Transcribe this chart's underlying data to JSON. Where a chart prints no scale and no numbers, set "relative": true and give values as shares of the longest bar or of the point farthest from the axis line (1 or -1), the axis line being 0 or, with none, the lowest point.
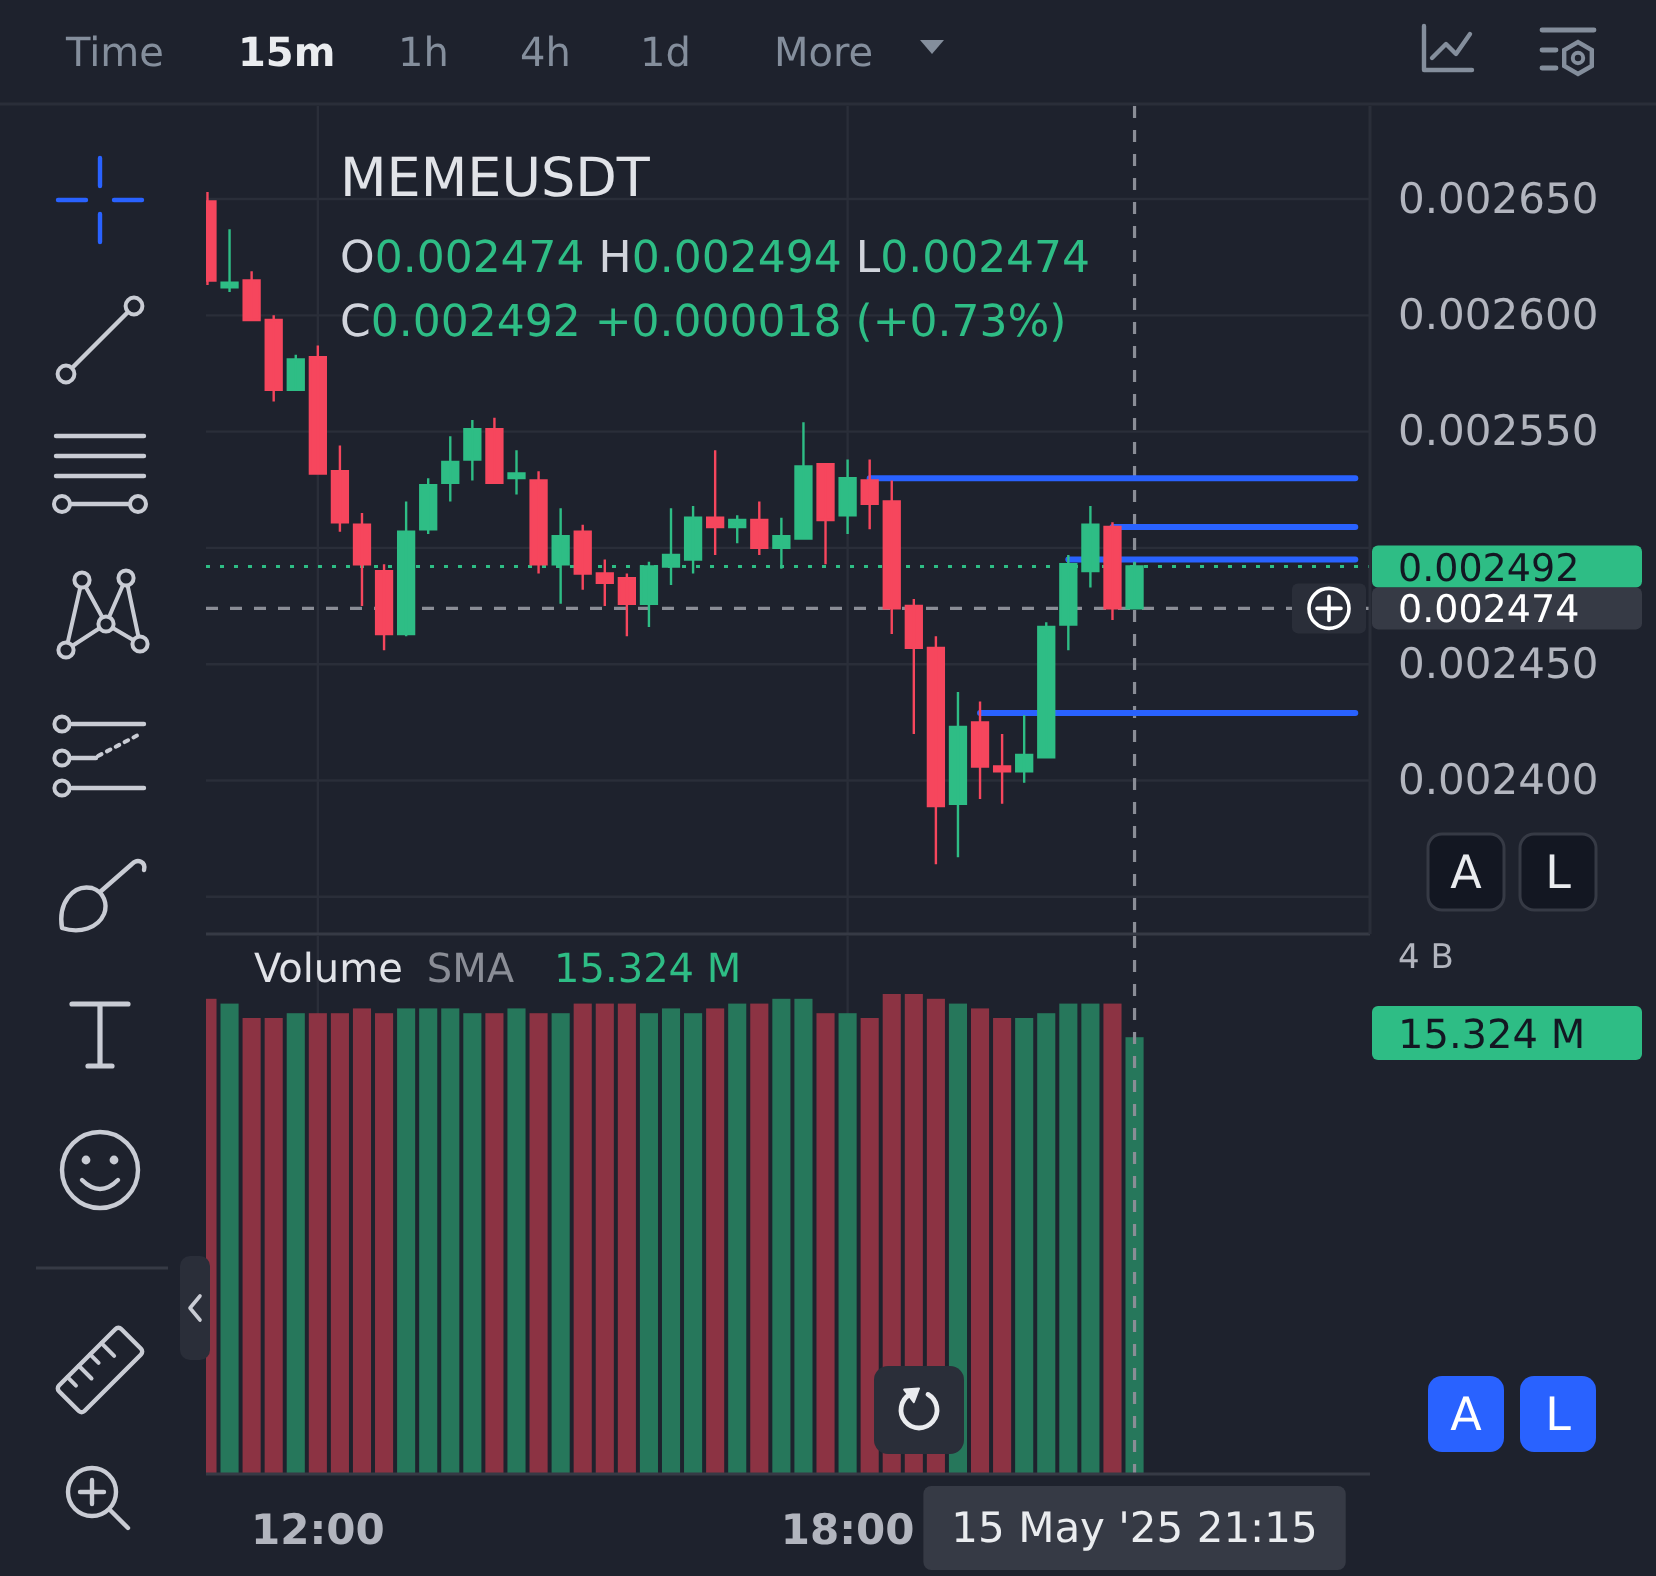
{
  "chart_data": [
    {
      "type": "other",
      "annotations": [
        "Time",
        "15m",
        "1h",
        "4h",
        "1d",
        "More"
      ]
    },
    {
      "type": "candlestick",
      "title": "MEMEUSDT",
      "x": [
        "2025-05-15T10:45",
        "2025-05-15T11:00",
        "2025-05-15T11:15",
        "2025-05-15T11:30",
        "2025-05-15T11:45",
        "2025-05-15T12:00",
        "2025-05-15T12:15",
        "2025-05-15T12:30",
        "2025-05-15T12:45",
        "2025-05-15T13:00",
        "2025-05-15T13:15",
        "2025-05-15T13:30",
        "2025-05-15T13:45",
        "2025-05-15T14:00",
        "2025-05-15T14:15",
        "2025-05-15T14:30",
        "2025-05-15T14:45",
        "2025-05-15T15:00",
        "2025-05-15T15:15",
        "2025-05-15T15:30",
        "2025-05-15T15:45",
        "2025-05-15T16:00",
        "2025-05-15T16:15",
        "2025-05-15T16:30",
        "2025-05-15T16:45",
        "2025-05-15T17:00",
        "2025-05-15T17:15",
        "2025-05-15T17:30",
        "2025-05-15T17:45",
        "2025-05-15T18:00",
        "2025-05-15T18:15",
        "2025-05-15T18:30",
        "2025-05-15T18:45",
        "2025-05-15T19:00",
        "2025-05-15T19:15",
        "2025-05-15T19:30",
        "2025-05-15T19:45",
        "2025-05-15T20:00",
        "2025-05-15T20:15",
        "2025-05-15T20:30",
        "2025-05-15T20:45",
        "2025-05-15T21:00",
        "2025-05-15T21:15"
      ],
      "ohlc": [
        [
          0.002649,
          0.002653,
          0.002613,
          0.002615
        ],
        [
          0.002612,
          0.002637,
          0.00261,
          0.002614
        ],
        [
          0.002615,
          0.002619,
          0.002598,
          0.002598
        ],
        [
          0.002598,
          0.0026,
          0.002563,
          0.002568
        ],
        [
          0.002568,
          0.002583,
          0.002568,
          0.002581
        ],
        [
          0.002582,
          0.002587,
          0.002532,
          0.002532
        ],
        [
          0.002533,
          0.002544,
          0.002507,
          0.002511
        ],
        [
          0.00251,
          0.002515,
          0.002475,
          0.002493
        ],
        [
          0.00249,
          0.002493,
          0.002456,
          0.002463
        ],
        [
          0.002463,
          0.00252,
          0.002462,
          0.002507
        ],
        [
          0.002508,
          0.00253,
          0.002506,
          0.002527
        ],
        [
          0.002528,
          0.002548,
          0.00252,
          0.002537
        ],
        [
          0.002538,
          0.002555,
          0.002529,
          0.002551
        ],
        [
          0.002551,
          0.002556,
          0.002528,
          0.002528
        ],
        [
          0.00253,
          0.002542,
          0.002523,
          0.002532
        ],
        [
          0.002529,
          0.002533,
          0.002489,
          0.002493
        ],
        [
          0.002493,
          0.002517,
          0.002476,
          0.002505
        ],
        [
          0.002507,
          0.00251,
          0.002482,
          0.002489
        ],
        [
          0.002489,
          0.002495,
          0.002475,
          0.002485
        ],
        [
          0.002487,
          0.002489,
          0.002462,
          0.002476
        ],
        [
          0.002476,
          0.002494,
          0.002466,
          0.002492
        ],
        [
          0.002492,
          0.002517,
          0.002484,
          0.002497
        ],
        [
          0.002495,
          0.002518,
          0.002489,
          0.002513
        ],
        [
          0.002513,
          0.002542,
          0.002497,
          0.002509
        ],
        [
          0.002509,
          0.002514,
          0.002502,
          0.002512
        ],
        [
          0.002512,
          0.00252,
          0.002497,
          0.0025
        ],
        [
          0.0025,
          0.002513,
          0.002491,
          0.002505
        ],
        [
          0.002504,
          0.002554,
          0.002504,
          0.002535
        ],
        [
          0.002536,
          0.002536,
          0.002493,
          0.002512
        ],
        [
          0.002514,
          0.002538,
          0.002506,
          0.00253
        ],
        [
          0.002529,
          0.002538,
          0.002508,
          0.002519
        ],
        [
          0.00252,
          0.002529,
          0.002463,
          0.002474
        ],
        [
          0.002475,
          0.002478,
          0.00242,
          0.002457
        ],
        [
          0.002457,
          0.002462,
          0.002364,
          0.002389
        ],
        [
          0.00239,
          0.002438,
          0.002367,
          0.002423
        ],
        [
          0.002425,
          0.002434,
          0.002392,
          0.002406
        ],
        [
          0.002406,
          0.00242,
          0.00239,
          0.002404
        ],
        [
          0.002404,
          0.002428,
          0.002399,
          0.002411
        ],
        [
          0.00241,
          0.002468,
          0.00241,
          0.002466
        ],
        [
          0.002467,
          0.002497,
          0.002456,
          0.002493
        ],
        [
          0.00249,
          0.002518,
          0.002483,
          0.00251
        ],
        [
          0.002509,
          0.002511,
          0.002469,
          0.002474
        ],
        [
          0.002474,
          0.002494,
          0.002474,
          0.002492
        ]
      ],
      "colors": [
        "#f6465d",
        "#2ebd85",
        "#f6465d",
        "#f6465d",
        "#2ebd85",
        "#f6465d",
        "#f6465d",
        "#f6465d",
        "#f6465d",
        "#2ebd85",
        "#2ebd85",
        "#2ebd85",
        "#2ebd85",
        "#f6465d",
        "#2ebd85",
        "#f6465d",
        "#2ebd85",
        "#f6465d",
        "#f6465d",
        "#f6465d",
        "#2ebd85",
        "#2ebd85",
        "#2ebd85",
        "#f6465d",
        "#2ebd85",
        "#f6465d",
        "#2ebd85",
        "#2ebd85",
        "#f6465d",
        "#2ebd85",
        "#f6465d",
        "#f6465d",
        "#f6465d",
        "#f6465d",
        "#2ebd85",
        "#f6465d",
        "#f6465d",
        "#2ebd85",
        "#2ebd85",
        "#2ebd85",
        "#2ebd85",
        "#f6465d",
        "#2ebd85"
      ],
      "series": [
        {
          "type": "line",
          "color": "#2962ff",
          "x": [
            "2025-05-15T18:15",
            "2025-05-15T23:45"
          ],
          "values": [
            0.00253,
            0.00253
          ]
        },
        {
          "type": "line",
          "color": "#2962ff",
          "x": [
            "2025-05-15T21:00",
            "2025-05-15T23:45"
          ],
          "values": [
            0.002509,
            0.002509
          ]
        },
        {
          "type": "line",
          "color": "#2962ff",
          "x": [
            "2025-05-15T20:30",
            "2025-05-15T23:45"
          ],
          "values": [
            0.002495,
            0.002495
          ]
        },
        {
          "type": "line",
          "color": "#2962ff",
          "x": [
            "2025-05-15T19:30",
            "2025-05-15T23:45"
          ],
          "values": [
            0.002429,
            0.002429
          ]
        }
      ],
      "xlim": [
        "2025-05-15T10:44",
        "2025-05-15T23:55"
      ],
      "xticks": [
        {
          "value": "2025-05-15T12:00",
          "label": null
        },
        {
          "value": "2025-05-15T18:00",
          "label": null
        }
      ],
      "ylim": [
        0.002334,
        0.00269
      ],
      "yticks": [
        {
          "value": 0.00235,
          "label": null
        },
        {
          "value": 0.0024,
          "label": "0.002400"
        },
        {
          "value": 0.00245,
          "label": "0.002450"
        },
        {
          "value": 0.0025,
          "label": null
        },
        {
          "value": 0.00255,
          "label": "0.002550"
        },
        {
          "value": 0.0026,
          "label": "0.002600"
        },
        {
          "value": 0.00265,
          "label": "0.002650"
        }
      ],
      "grid": true,
      "tick_labels": "y",
      "ref_lines": [
        {
          "axis": "y",
          "value": 0.002492,
          "label": "0.002492",
          "color": "#2ebd85",
          "line_style": "dotted"
        },
        {
          "axis": "y",
          "value": 0.002474,
          "label": "0.002474",
          "color": "#8a8d96",
          "line_style": "dashed"
        },
        {
          "axis": "x",
          "value": "2025-05-15T21:15",
          "color": "#8a8d96",
          "line_style": "dashed"
        }
      ],
      "annotations": [
        "O0.002474 H0.002494 L0.002474",
        "C0.002492 +0.000018 (+0.73%)",
        "A",
        "L"
      ]
    },
    {
      "type": "bar",
      "title": "Volume",
      "x": [
        "2025-05-15T10:45",
        "2025-05-15T11:00",
        "2025-05-15T11:15",
        "2025-05-15T11:30",
        "2025-05-15T11:45",
        "2025-05-15T12:00",
        "2025-05-15T12:15",
        "2025-05-15T12:30",
        "2025-05-15T12:45",
        "2025-05-15T13:00",
        "2025-05-15T13:15",
        "2025-05-15T13:30",
        "2025-05-15T13:45",
        "2025-05-15T14:00",
        "2025-05-15T14:15",
        "2025-05-15T14:30",
        "2025-05-15T14:45",
        "2025-05-15T15:00",
        "2025-05-15T15:15",
        "2025-05-15T15:30",
        "2025-05-15T15:45",
        "2025-05-15T16:00",
        "2025-05-15T16:15",
        "2025-05-15T16:30",
        "2025-05-15T16:45",
        "2025-05-15T17:00",
        "2025-05-15T17:15",
        "2025-05-15T17:30",
        "2025-05-15T17:45",
        "2025-05-15T18:00",
        "2025-05-15T18:15",
        "2025-05-15T18:30",
        "2025-05-15T18:45",
        "2025-05-15T19:00",
        "2025-05-15T19:15",
        "2025-05-15T19:30",
        "2025-05-15T19:45",
        "2025-05-15T20:00",
        "2025-05-15T20:15",
        "2025-05-15T20:30",
        "2025-05-15T20:45",
        "2025-05-15T21:00",
        "2025-05-15T21:15"
      ],
      "values": [
        0.99,
        0.98,
        0.95,
        0.95,
        0.96,
        0.96,
        0.96,
        0.97,
        0.96,
        0.97,
        0.97,
        0.97,
        0.96,
        0.96,
        0.97,
        0.96,
        0.96,
        0.98,
        0.98,
        0.98,
        0.96,
        0.97,
        0.96,
        0.97,
        0.98,
        0.98,
        0.99,
        0.99,
        0.96,
        0.96,
        0.95,
        1,
        1,
        0.99,
        0.98,
        0.97,
        0.95,
        0.95,
        0.96,
        0.98,
        0.98,
        0.98,
        0.91
      ],
      "colors": [
        "#8c3343",
        "#26775b",
        "#8c3343",
        "#8c3343",
        "#26775b",
        "#8c3343",
        "#8c3343",
        "#8c3343",
        "#8c3343",
        "#26775b",
        "#26775b",
        "#26775b",
        "#26775b",
        "#8c3343",
        "#26775b",
        "#8c3343",
        "#26775b",
        "#8c3343",
        "#8c3343",
        "#8c3343",
        "#26775b",
        "#26775b",
        "#26775b",
        "#8c3343",
        "#26775b",
        "#8c3343",
        "#26775b",
        "#26775b",
        "#8c3343",
        "#26775b",
        "#8c3343",
        "#8c3343",
        "#8c3343",
        "#8c3343",
        "#26775b",
        "#8c3343",
        "#8c3343",
        "#26775b",
        "#26775b",
        "#26775b",
        "#26775b",
        "#8c3343",
        "#26775b"
      ],
      "relative": true,
      "xlim": [
        "2025-05-15T10:44",
        "2025-05-15T23:55"
      ],
      "xticks": [
        {
          "value": "2025-05-15T12:00",
          "label": "12:00"
        },
        {
          "value": "2025-05-15T18:00",
          "label": "18:00"
        }
      ],
      "grid": "x",
      "tick_labels": "x",
      "ref_lines": [
        {
          "axis": "x",
          "value": "2025-05-15T21:15",
          "label": "15 May '25 21:15",
          "color": "#8a8d96",
          "line_style": "dashed"
        }
      ],
      "annotations": [
        "SMA",
        "15.324 M",
        "15.324 M",
        "4 B",
        "A",
        "L"
      ]
    }
  ]
}
